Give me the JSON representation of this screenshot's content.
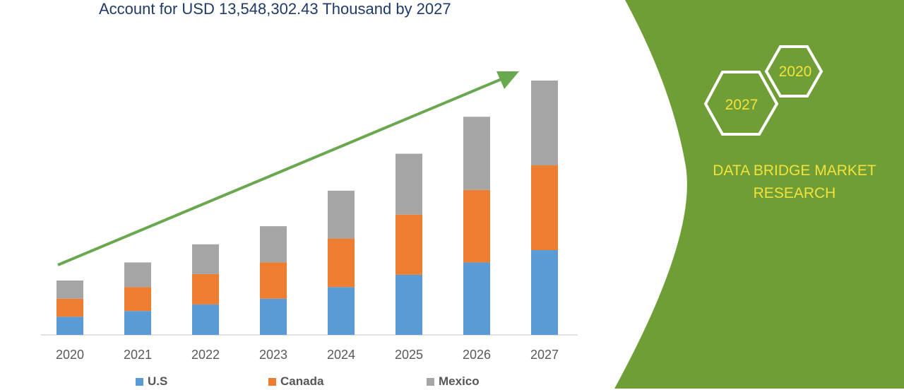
{
  "title": "Account for USD 13,548,302.43 Thousand by 2027",
  "brand": {
    "line1": "DATA BRIDGE MARKET",
    "line2": "RESEARCH",
    "hex_a": "2020",
    "hex_b": "2027",
    "panel_color": "#6f9e37",
    "text_color": "#f3e23a"
  },
  "chart_data": {
    "type": "bar",
    "stacked": true,
    "categories": [
      "2020",
      "2021",
      "2022",
      "2023",
      "2024",
      "2025",
      "2026",
      "2027"
    ],
    "series": [
      {
        "name": "U.S",
        "color": "#5b9bd5",
        "values": [
          25,
          33,
          42,
          50,
          66,
          83,
          100,
          117
        ]
      },
      {
        "name": "Canada",
        "color": "#ed7d31",
        "values": [
          25,
          33,
          42,
          50,
          67,
          83,
          100,
          117
        ]
      },
      {
        "name": "Mexico",
        "color": "#a5a5a5",
        "values": [
          25,
          34,
          41,
          50,
          66,
          84,
          101,
          117
        ]
      }
    ],
    "ylim": [
      0,
      351
    ],
    "grid": false,
    "legend_position": "bottom",
    "trend_arrow": true
  }
}
